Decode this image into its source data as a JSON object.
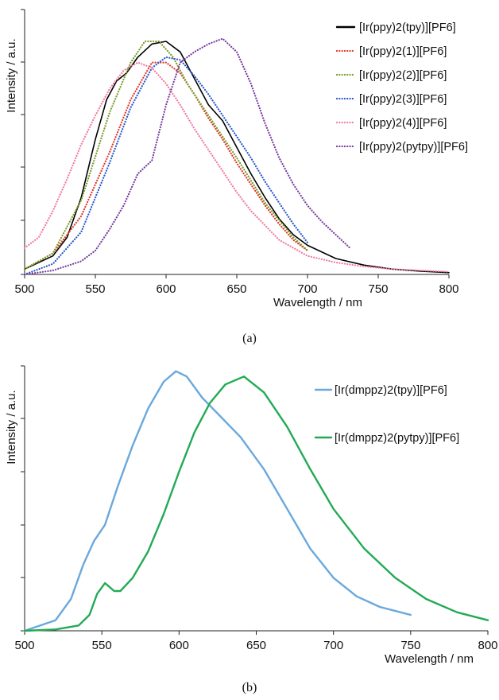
{
  "chart_data": [
    {
      "panel_label": "(a)",
      "type": "line",
      "xlabel": "Wavelength / nm",
      "ylabel": "Intensity / a.u.",
      "xlim": [
        500,
        800
      ],
      "ylim": [
        0,
        1.0
      ],
      "x_ticks": [
        "500",
        "550",
        "600",
        "650",
        "700",
        "750",
        "800"
      ],
      "x_tick_values": [
        500,
        550,
        600,
        650,
        700,
        750,
        800
      ],
      "y_tick_labels_shown": false,
      "grid": false,
      "legend_position": "top-right",
      "series": [
        {
          "name": "[Ir(ppy)2(tpy)][PF6]",
          "color": "#000000",
          "style": "solid",
          "x": [
            500,
            520,
            530,
            540,
            550,
            558,
            565,
            572,
            580,
            590,
            600,
            610,
            620,
            630,
            640,
            650,
            660,
            670,
            680,
            690,
            700,
            720,
            740,
            760,
            780,
            800
          ],
          "y": [
            0.02,
            0.07,
            0.14,
            0.29,
            0.51,
            0.66,
            0.73,
            0.76,
            0.82,
            0.87,
            0.88,
            0.84,
            0.74,
            0.64,
            0.58,
            0.48,
            0.38,
            0.29,
            0.21,
            0.15,
            0.11,
            0.06,
            0.035,
            0.02,
            0.012,
            0.007
          ]
        },
        {
          "name": "[Ir(ppy)2(1)][PF6]",
          "color": "#e03a2a",
          "style": "dotted",
          "x": [
            500,
            520,
            540,
            560,
            575,
            590,
            600,
            610,
            620,
            630,
            640,
            650,
            660,
            670,
            680,
            690,
            700
          ],
          "y": [
            0.02,
            0.08,
            0.22,
            0.46,
            0.66,
            0.8,
            0.8,
            0.76,
            0.68,
            0.59,
            0.51,
            0.42,
            0.34,
            0.26,
            0.19,
            0.13,
            0.09
          ]
        },
        {
          "name": "[Ir(ppy)2(2)][PF6]",
          "color": "#7a9a28",
          "style": "dotted",
          "x": [
            500,
            520,
            540,
            560,
            575,
            585,
            595,
            605,
            615,
            630,
            650,
            670,
            690,
            700
          ],
          "y": [
            0.02,
            0.08,
            0.28,
            0.61,
            0.8,
            0.88,
            0.88,
            0.82,
            0.72,
            0.6,
            0.44,
            0.27,
            0.14,
            0.09
          ]
        },
        {
          "name": "[Ir(ppy)2(3)][PF6]",
          "color": "#2a58c8",
          "style": "dotted",
          "x": [
            500,
            520,
            540,
            560,
            575,
            590,
            600,
            610,
            620,
            630,
            640,
            650,
            660,
            670,
            680,
            690,
            700
          ],
          "y": [
            0.0,
            0.04,
            0.16,
            0.42,
            0.63,
            0.78,
            0.82,
            0.81,
            0.75,
            0.68,
            0.6,
            0.52,
            0.44,
            0.35,
            0.27,
            0.19,
            0.12
          ]
        },
        {
          "name": "[Ir(ppy)2(4)][PF6]",
          "color": "#f07aa0",
          "style": "dotted",
          "x": [
            500,
            510,
            520,
            530,
            540,
            550,
            560,
            570,
            580,
            590,
            600,
            610,
            620,
            630,
            640,
            650,
            660,
            680,
            700,
            720,
            740,
            760,
            780,
            800
          ],
          "y": [
            0.1,
            0.14,
            0.24,
            0.36,
            0.49,
            0.6,
            0.7,
            0.77,
            0.8,
            0.78,
            0.72,
            0.64,
            0.55,
            0.47,
            0.39,
            0.31,
            0.24,
            0.13,
            0.07,
            0.045,
            0.03,
            0.02,
            0.015,
            0.01
          ]
        },
        {
          "name": "[Ir(ppy)2(pytpy)][PF6]",
          "color": "#7a3aa0",
          "style": "dotted",
          "x": [
            500,
            520,
            540,
            550,
            560,
            570,
            580,
            590,
            600,
            610,
            620,
            630,
            640,
            650,
            660,
            670,
            680,
            690,
            700,
            710,
            720,
            730
          ],
          "y": [
            0.0,
            0.015,
            0.05,
            0.09,
            0.17,
            0.26,
            0.38,
            0.43,
            0.64,
            0.8,
            0.84,
            0.87,
            0.89,
            0.84,
            0.72,
            0.57,
            0.44,
            0.34,
            0.26,
            0.2,
            0.15,
            0.1
          ]
        }
      ]
    },
    {
      "panel_label": "(b)",
      "type": "line",
      "xlabel": "Wavelength / nm",
      "ylabel": "Intensity / a.u.",
      "xlim": [
        500,
        800
      ],
      "ylim": [
        0,
        1.0
      ],
      "x_ticks": [
        "500",
        "550",
        "600",
        "650",
        "700",
        "750",
        "800"
      ],
      "x_tick_values": [
        500,
        550,
        600,
        650,
        700,
        750,
        800
      ],
      "y_tick_labels_shown": false,
      "grid": false,
      "legend_position": "top-right",
      "series": [
        {
          "name": "[Ir(dmppz)2(tpy)][PF6]",
          "color": "#6aa8dc",
          "style": "solid",
          "x": [
            500,
            520,
            530,
            538,
            545,
            552,
            560,
            570,
            580,
            590,
            598,
            605,
            615,
            625,
            640,
            655,
            670,
            685,
            700,
            715,
            730,
            750
          ],
          "y": [
            0.0,
            0.04,
            0.12,
            0.25,
            0.34,
            0.4,
            0.54,
            0.7,
            0.84,
            0.94,
            0.98,
            0.96,
            0.88,
            0.82,
            0.73,
            0.61,
            0.46,
            0.31,
            0.2,
            0.13,
            0.09,
            0.06
          ]
        },
        {
          "name": "[Ir(dmppz)2(pytpy)][PF6]",
          "color": "#22aa55",
          "style": "solid",
          "x": [
            500,
            520,
            535,
            542,
            547,
            552,
            558,
            562,
            570,
            580,
            590,
            600,
            610,
            620,
            630,
            642,
            655,
            670,
            685,
            700,
            720,
            740,
            760,
            780,
            800
          ],
          "y": [
            0.0,
            0.005,
            0.02,
            0.06,
            0.14,
            0.18,
            0.15,
            0.15,
            0.2,
            0.3,
            0.44,
            0.6,
            0.75,
            0.86,
            0.93,
            0.96,
            0.9,
            0.77,
            0.61,
            0.46,
            0.31,
            0.2,
            0.12,
            0.07,
            0.04
          ]
        }
      ]
    }
  ]
}
